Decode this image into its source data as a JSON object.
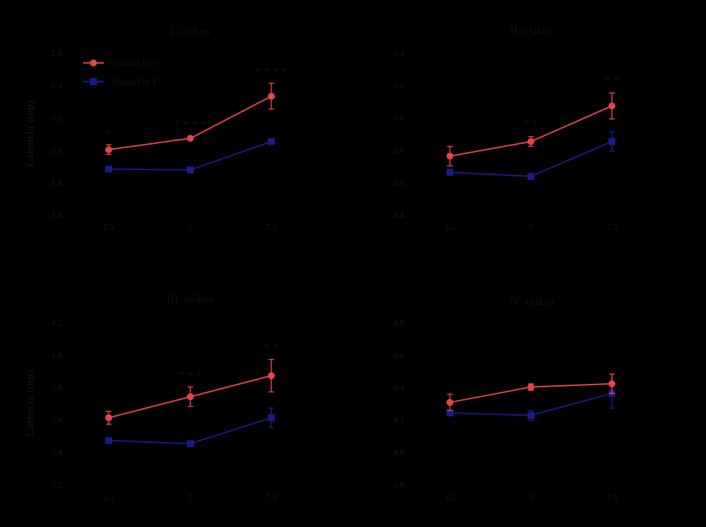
{
  "chart_data": [
    {
      "type": "line",
      "title": "I. csíkos",
      "ylabel": "Látencia (mp)",
      "categories": [
        "2.5",
        "5",
        "7.5"
      ],
      "yticks": [
        "1.6",
        "1.8",
        "2.0",
        "2.2",
        "2.4",
        "2.6"
      ],
      "ylim": [
        1.6,
        2.6
      ],
      "series": [
        {
          "name": "Shank3 KO",
          "values": [
            2.0,
            2.07,
            2.33
          ],
          "errors": [
            0.03,
            0.01,
            0.08
          ],
          "color": "#e8434a",
          "marker": "circle"
        },
        {
          "name": "Shank3 WT",
          "values": [
            1.88,
            1.875,
            2.05
          ],
          "errors": [
            0.01,
            0.01,
            0.01
          ],
          "color": "#1a1a8c",
          "marker": "square"
        }
      ],
      "significance": [
        "*",
        "* * * *",
        "* * * *"
      ],
      "legend": "top-left"
    },
    {
      "type": "line",
      "title": "II. csíkos",
      "ylabel": "",
      "categories": [
        "2.5",
        "5",
        "7.5"
      ],
      "yticks": [
        "2.4",
        "2.6",
        "2.8",
        "3.0",
        "3.2",
        "3.4"
      ],
      "ylim": [
        2.4,
        3.4
      ],
      "series": [
        {
          "name": "Shank3 KO",
          "values": [
            2.76,
            2.85,
            3.07
          ],
          "errors": [
            0.06,
            0.03,
            0.08
          ],
          "color": "#e8434a",
          "marker": "circle"
        },
        {
          "name": "Shank3 WT",
          "values": [
            2.66,
            2.635,
            2.85
          ],
          "errors": [
            0.01,
            0.01,
            0.06
          ],
          "color": "#1a1a8c",
          "marker": "square"
        }
      ],
      "significance": [
        "",
        "* *",
        "* *"
      ]
    },
    {
      "type": "line",
      "title": "III. csíkos",
      "ylabel": "Látencia (mp)",
      "categories": [
        "2.5",
        "5",
        "7.5"
      ],
      "yticks": [
        "3.2",
        "3.4",
        "3.6",
        "3.8",
        "4.0",
        "4.2"
      ],
      "ylim": [
        3.2,
        4.2
      ],
      "series": [
        {
          "name": "Shank3 KO",
          "values": [
            3.61,
            3.74,
            3.87
          ],
          "errors": [
            0.04,
            0.06,
            0.1
          ],
          "color": "#e8434a",
          "marker": "circle"
        },
        {
          "name": "Shank3 WT",
          "values": [
            3.47,
            3.45,
            3.61
          ],
          "errors": [
            0.01,
            0.01,
            0.06
          ],
          "color": "#1a1a8c",
          "marker": "square"
        }
      ],
      "significance": [
        "",
        "* * *",
        "* *"
      ]
    },
    {
      "type": "line",
      "title": "IV. csíkos",
      "ylabel": "",
      "categories": [
        "2.5",
        "5",
        "7.5"
      ],
      "yticks": [
        "3.8",
        "4.0",
        "4.2",
        "4.4",
        "4.6",
        "4.8"
      ],
      "ylim": [
        3.8,
        4.8
      ],
      "series": [
        {
          "name": "Shank3 KO",
          "values": [
            4.305,
            4.4,
            4.42
          ],
          "errors": [
            0.05,
            0.02,
            0.06
          ],
          "color": "#e8434a",
          "marker": "circle"
        },
        {
          "name": "Shank3 WT",
          "values": [
            4.24,
            4.225,
            4.36
          ],
          "errors": [
            0.01,
            0.03,
            0.09
          ],
          "color": "#1a1a8c",
          "marker": "square"
        }
      ],
      "significance": [
        "",
        "",
        ""
      ]
    }
  ]
}
